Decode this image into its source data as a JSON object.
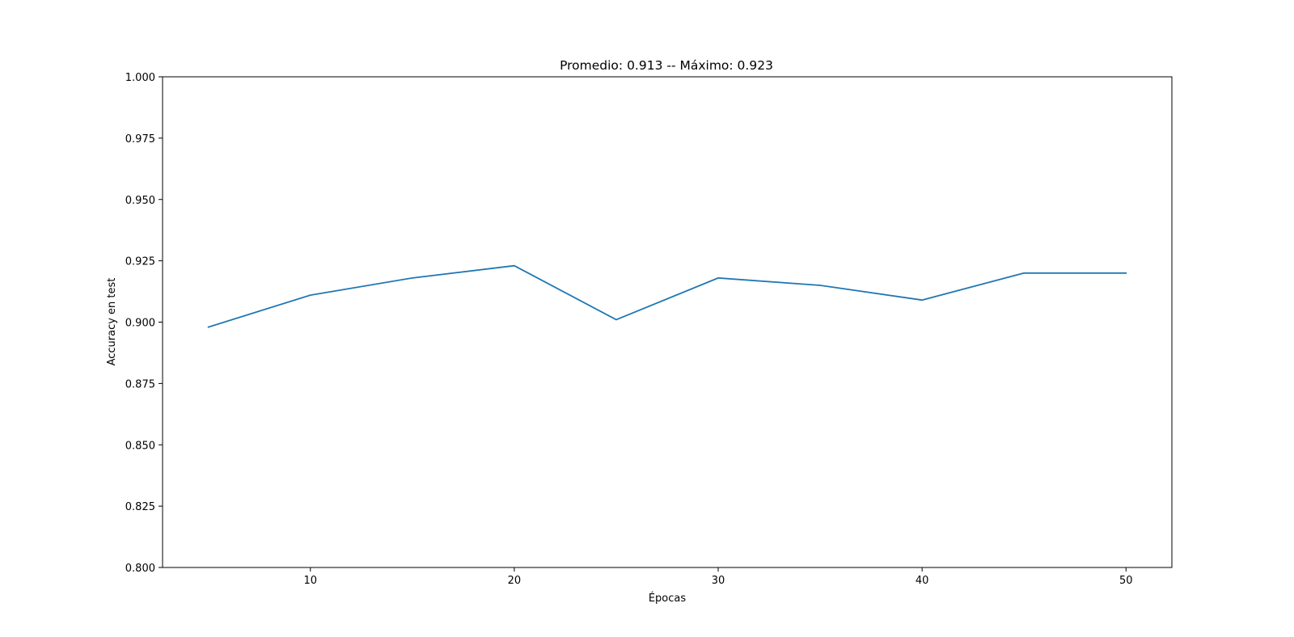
{
  "chart_data": {
    "type": "line",
    "title": "Promedio: 0.913 -- Máximo: 0.923",
    "xlabel": "Épocas",
    "ylabel": "Accuracy en test",
    "xlim": [
      2.75,
      52.25
    ],
    "ylim": [
      0.8,
      1.0
    ],
    "xticks": [
      10,
      20,
      30,
      40,
      50
    ],
    "xtick_labels": [
      "10",
      "20",
      "30",
      "40",
      "50"
    ],
    "yticks": [
      0.8,
      0.825,
      0.85,
      0.875,
      0.9,
      0.925,
      0.95,
      0.975,
      1.0
    ],
    "ytick_labels": [
      "0.800",
      "0.825",
      "0.850",
      "0.875",
      "0.900",
      "0.925",
      "0.950",
      "0.975",
      "1.000"
    ],
    "grid": false,
    "series": [
      {
        "color": "#1f77b4",
        "x": [
          5,
          10,
          15,
          20,
          25,
          30,
          35,
          40,
          45,
          50
        ],
        "y": [
          0.898,
          0.911,
          0.918,
          0.923,
          0.901,
          0.918,
          0.915,
          0.909,
          0.92,
          0.92
        ]
      }
    ]
  }
}
